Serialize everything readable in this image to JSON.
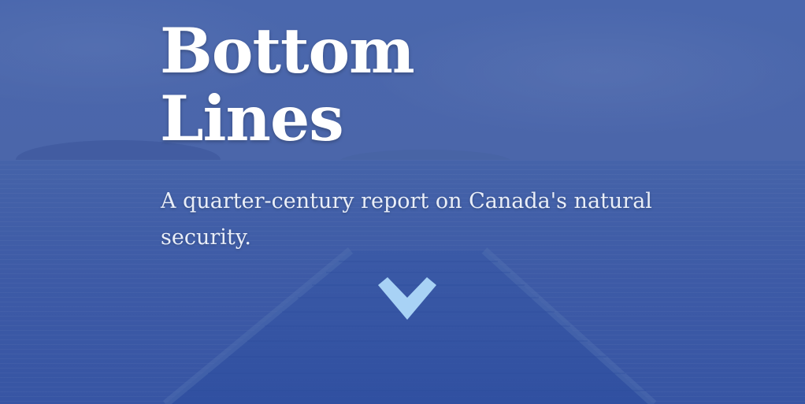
{
  "hero": {
    "title_line1": "Bottom",
    "title_line2": "Lines",
    "subtitle": "A quarter-century report on Canada's natural security.",
    "scroll_icon": "chevron-down-icon",
    "colors": {
      "overlay": "#4563a9",
      "title": "#ffffff",
      "subtitle": "#e9eef8",
      "chevron": "#a8d2f5"
    }
  }
}
